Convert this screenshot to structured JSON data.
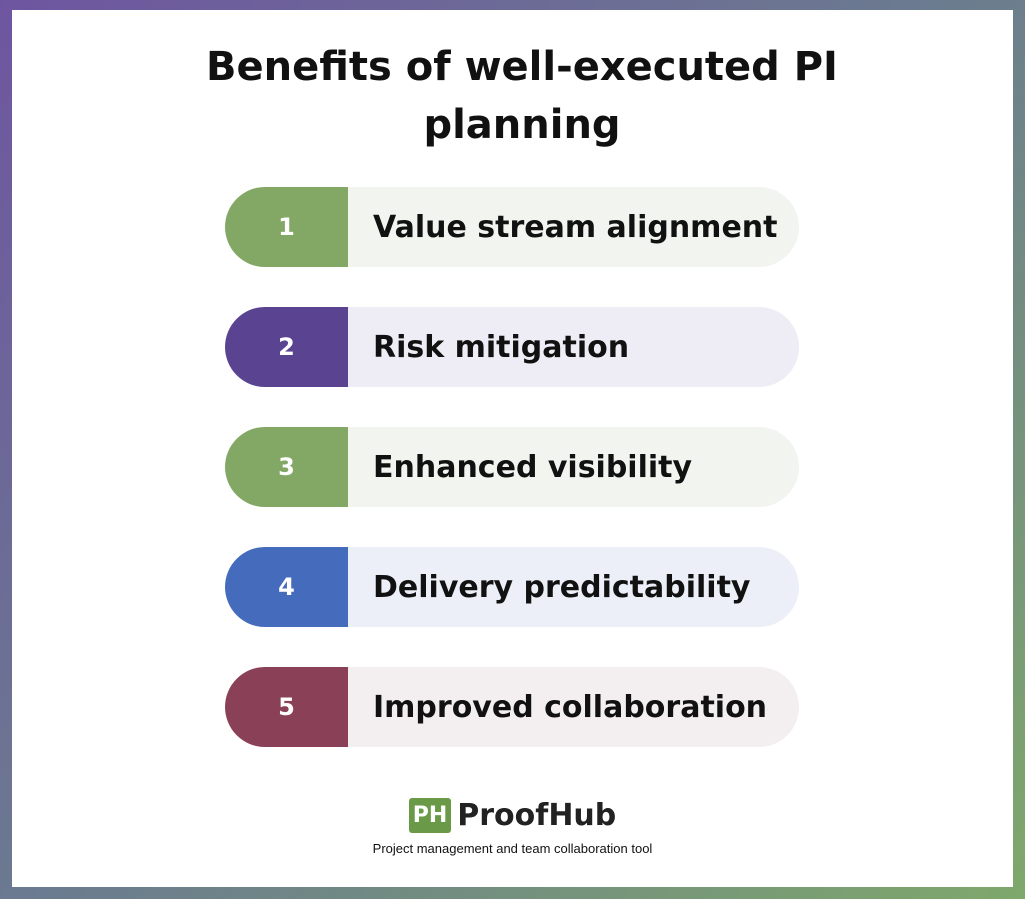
{
  "header": {
    "title": "Benefits of well-executed PI planning"
  },
  "items": [
    {
      "number": "1",
      "label": "Value stream alignment"
    },
    {
      "number": "2",
      "label": "Risk mitigation"
    },
    {
      "number": "3",
      "label": "Enhanced visibility"
    },
    {
      "number": "4",
      "label": "Delivery predictability"
    },
    {
      "number": "5",
      "label": "Improved collaboration"
    }
  ],
  "footer": {
    "logo": "PH",
    "brand": "ProofHub",
    "tagline": "Project management and team collaboration tool"
  }
}
